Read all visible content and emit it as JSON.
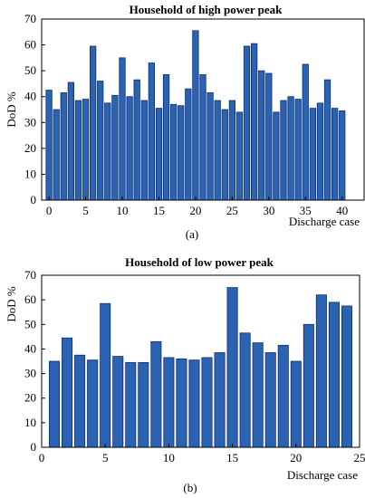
{
  "chart_data": [
    {
      "type": "bar",
      "title": "Household of high power peak",
      "xlabel": "Discharge case",
      "ylabel": "DoD %",
      "caption": "(a)",
      "x": [
        0,
        1,
        2,
        3,
        4,
        5,
        6,
        7,
        8,
        9,
        10,
        11,
        12,
        13,
        14,
        15,
        16,
        17,
        18,
        19,
        20,
        21,
        22,
        23,
        24,
        25,
        26,
        27,
        28,
        29,
        30,
        31,
        32,
        33,
        34,
        35,
        36,
        37,
        38,
        39,
        40,
        41,
        42
      ],
      "values": [
        42.5,
        35,
        41.5,
        45.5,
        38.5,
        39,
        59.5,
        46,
        37.5,
        40.5,
        55,
        40,
        46.5,
        38.5,
        53,
        35.5,
        48.5,
        37,
        36.5,
        43,
        65.5,
        48.5,
        41.5,
        38.5,
        35,
        38.5,
        34,
        59.5,
        60.5,
        50,
        49,
        34,
        38.5,
        40,
        39,
        52.5,
        35.5,
        37.5,
        46.5,
        35.5,
        34.5,
        null,
        null
      ],
      "xlim": [
        -1,
        43
      ],
      "ylim": [
        0,
        70
      ],
      "xticks": [
        0,
        5,
        10,
        15,
        20,
        25,
        30,
        35,
        40
      ],
      "yticks": [
        0,
        10,
        20,
        30,
        40,
        50,
        60,
        70
      ],
      "grid": false,
      "color": "#2a63b4"
    },
    {
      "type": "bar",
      "title": "Household of low power peak",
      "xlabel": "Discharge case",
      "ylabel": "DoD %",
      "caption": "(b)",
      "x": [
        1,
        2,
        3,
        4,
        5,
        6,
        7,
        8,
        9,
        10,
        11,
        12,
        13,
        14,
        15,
        16,
        17,
        18,
        19,
        20,
        21,
        22,
        23,
        24
      ],
      "values": [
        35,
        44.5,
        37.5,
        35.5,
        58.5,
        37,
        34.5,
        34.5,
        43,
        36.5,
        36,
        35.5,
        36.5,
        38.5,
        65,
        46.5,
        42.5,
        38.5,
        41.5,
        35,
        50,
        62,
        59,
        57.5
      ],
      "xlim": [
        0,
        25
      ],
      "ylim": [
        0,
        70
      ],
      "xticks": [
        0,
        5,
        10,
        15,
        20,
        25
      ],
      "yticks": [
        0,
        10,
        20,
        30,
        40,
        50,
        60,
        70
      ],
      "grid": false,
      "color": "#2a63b4"
    }
  ]
}
